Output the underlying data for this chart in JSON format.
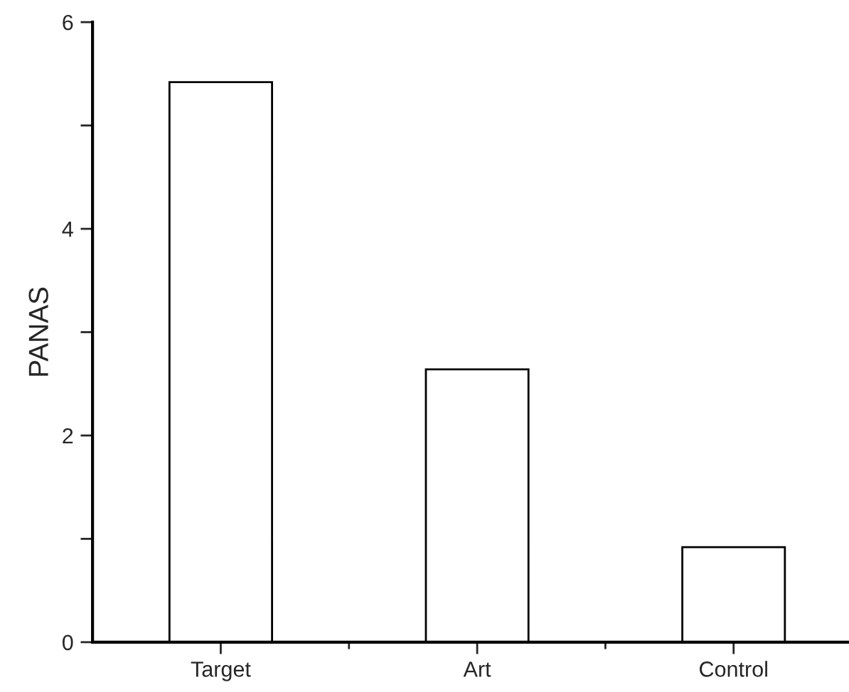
{
  "chart_data": {
    "type": "bar",
    "ylabel": "PANAS",
    "categories": [
      "Target",
      "Art",
      "Control"
    ],
    "values": [
      5.42,
      2.64,
      0.92
    ],
    "color": "#ffffff",
    "ylim": [
      0,
      6
    ],
    "yticks": [
      0,
      {
        "value": 1,
        "label": null
      },
      2,
      {
        "value": 3,
        "label": null
      },
      4,
      {
        "value": 5,
        "label": null
      },
      6
    ],
    "grid": false,
    "legend": false
  }
}
